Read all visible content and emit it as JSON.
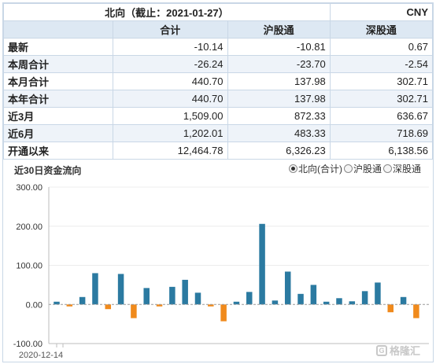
{
  "header": {
    "title": "北向（截止：2021-01-27）",
    "currency": "CNY"
  },
  "columns": [
    "合计",
    "沪股通",
    "深股通"
  ],
  "rows": [
    {
      "label": "最新",
      "values": [
        "-10.14",
        "-10.81",
        "0.67"
      ]
    },
    {
      "label": "本周合计",
      "values": [
        "-26.24",
        "-23.70",
        "-2.54"
      ]
    },
    {
      "label": "本月合计",
      "values": [
        "440.70",
        "137.98",
        "302.71"
      ]
    },
    {
      "label": "本年合计",
      "values": [
        "440.70",
        "137.98",
        "302.71"
      ]
    },
    {
      "label": "近3月",
      "values": [
        "1,509.00",
        "872.33",
        "636.67"
      ]
    },
    {
      "label": "近6月",
      "values": [
        "1,202.01",
        "483.33",
        "718.69"
      ]
    },
    {
      "label": "开通以来",
      "values": [
        "12,464.78",
        "6,326.23",
        "6,138.56"
      ]
    }
  ],
  "chart_section": {
    "title": "近30日资金流向",
    "options": [
      {
        "label": "北向(合计)",
        "selected": true
      },
      {
        "label": "沪股通",
        "selected": false
      },
      {
        "label": "深股通",
        "selected": false
      }
    ]
  },
  "watermark": "格隆汇",
  "colors": {
    "positive": "#2b7aa1",
    "negative": "#f08a1c",
    "header_bg": "#dde8f3",
    "row_alt": "#eef3f9"
  },
  "chart_data": {
    "type": "bar",
    "ylim": [
      -100,
      300
    ],
    "yticks": [
      "300.00",
      "200.00",
      "100.00",
      "0.00",
      "-100.00"
    ],
    "ytick_values": [
      300,
      200,
      100,
      0,
      -100
    ],
    "x_first_label": "2020-12-14",
    "values": [
      7,
      -5,
      19,
      80,
      -12,
      78,
      -35,
      42,
      -5,
      45,
      63,
      30,
      -5,
      -43,
      7,
      32,
      206,
      10,
      84,
      27,
      50,
      7,
      16,
      8,
      34,
      56,
      -20,
      19,
      -35
    ]
  }
}
